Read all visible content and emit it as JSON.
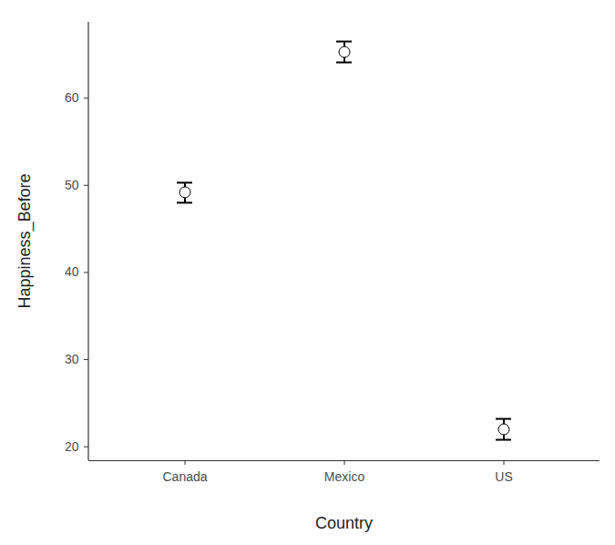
{
  "chart_data": {
    "type": "scatter",
    "x_label": "Country",
    "y_label": "Happiness_Before",
    "categories": [
      "Canada",
      "Mexico",
      "US"
    ],
    "values": [
      49.2,
      65.3,
      22.0
    ],
    "error_low": [
      48.0,
      64.1,
      20.8
    ],
    "error_high": [
      50.3,
      66.5,
      23.2
    ],
    "ylim": [
      18.4,
      68.7
    ],
    "yticks": [
      20,
      30,
      40,
      50,
      60
    ],
    "marker": "circle"
  }
}
